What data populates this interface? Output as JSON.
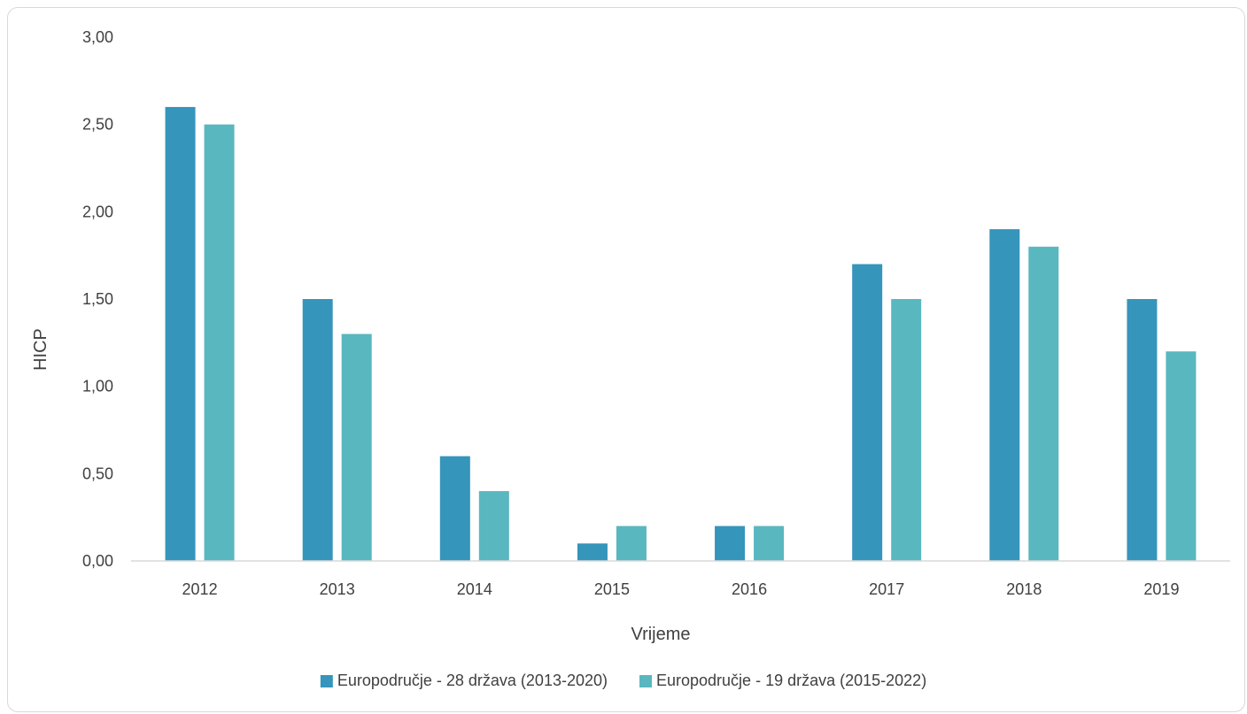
{
  "chart_data": {
    "type": "bar",
    "categories": [
      "2012",
      "2013",
      "2014",
      "2015",
      "2016",
      "2017",
      "2018",
      "2019"
    ],
    "series": [
      {
        "name": "Europodručje - 28 država (2013-2020)",
        "color": "#3595bb",
        "values": [
          2.6,
          1.5,
          0.6,
          0.1,
          0.2,
          1.7,
          1.9,
          1.5
        ]
      },
      {
        "name": "Europodručje - 19 država  (2015-2022)",
        "color": "#59b7c0",
        "values": [
          2.5,
          1.3,
          0.4,
          0.2,
          0.2,
          1.5,
          1.8,
          1.2
        ]
      }
    ],
    "y_ticks": [
      "0,00",
      "0,50",
      "1,00",
      "1,50",
      "2,00",
      "2,50",
      "3,00"
    ],
    "ylim": [
      0,
      3
    ],
    "xlabel": "Vrijeme",
    "ylabel": "HICP",
    "grid": false,
    "legend_position": "bottom"
  }
}
